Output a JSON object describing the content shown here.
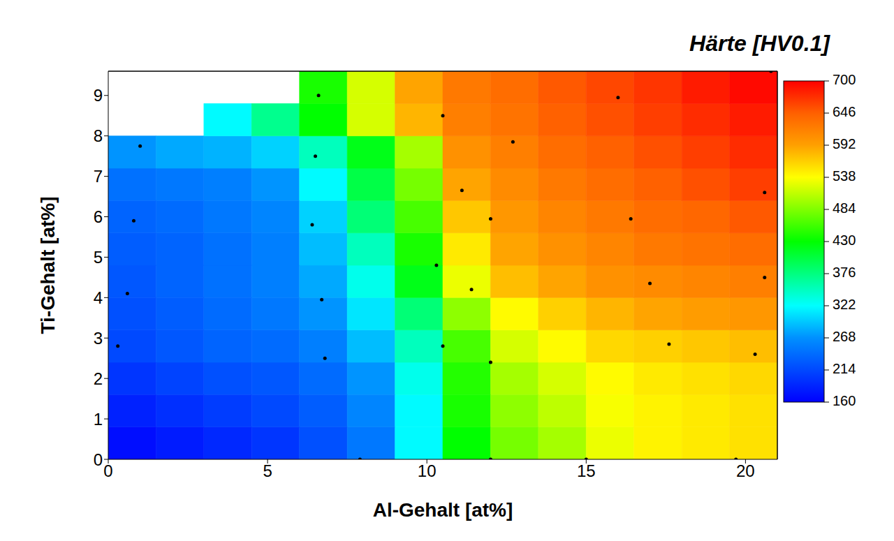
{
  "chart_data": {
    "type": "heatmap",
    "colorbar_title": "Härte [HV0.1]",
    "x_label": "Al-Gehalt [at%]",
    "y_label": "Ti-Gehalt [at%]",
    "xlim": [
      0,
      21
    ],
    "ylim": [
      0,
      9.6
    ],
    "xticks": [
      0,
      5,
      10,
      15,
      20
    ],
    "yticks": [
      0,
      1,
      2,
      3,
      4,
      5,
      6,
      7,
      8,
      9
    ],
    "cells": {
      "x": [
        0.75,
        2.25,
        3.75,
        5.25,
        6.75,
        8.25,
        9.75,
        11.25,
        12.75,
        14.25,
        15.75,
        17.25,
        18.75,
        20.25
      ],
      "y": [
        0.4,
        1.2,
        2.0,
        2.8,
        3.6,
        4.4,
        5.2,
        6.0,
        6.8,
        7.6,
        8.4,
        9.2
      ],
      "values": [
        [
          170,
          180,
          190,
          200,
          220,
          250,
          320,
          430,
          480,
          500,
          530,
          545,
          550,
          555
        ],
        [
          185,
          195,
          205,
          215,
          230,
          260,
          320,
          440,
          490,
          510,
          535,
          545,
          550,
          555
        ],
        [
          200,
          210,
          220,
          225,
          240,
          270,
          330,
          445,
          500,
          520,
          540,
          550,
          555,
          560
        ],
        [
          215,
          225,
          235,
          240,
          255,
          290,
          350,
          460,
          520,
          540,
          560,
          565,
          570,
          575
        ],
        [
          220,
          230,
          240,
          250,
          270,
          310,
          380,
          490,
          540,
          565,
          580,
          590,
          595,
          600
        ],
        [
          225,
          235,
          245,
          255,
          280,
          330,
          420,
          530,
          575,
          590,
          605,
          610,
          615,
          620
        ],
        [
          230,
          235,
          245,
          255,
          290,
          350,
          440,
          550,
          590,
          605,
          615,
          625,
          630,
          635
        ],
        [
          235,
          240,
          250,
          260,
          300,
          380,
          460,
          570,
          600,
          615,
          625,
          635,
          640,
          650
        ],
        [
          245,
          250,
          255,
          270,
          320,
          400,
          480,
          590,
          610,
          625,
          635,
          645,
          655,
          665
        ],
        [
          270,
          280,
          285,
          300,
          350,
          420,
          500,
          605,
          620,
          635,
          645,
          655,
          665,
          675
        ],
        [
          null,
          null,
          320,
          370,
          430,
          520,
          580,
          620,
          630,
          645,
          655,
          665,
          675,
          685
        ],
        [
          null,
          null,
          null,
          null,
          440,
          520,
          590,
          625,
          635,
          650,
          660,
          670,
          685,
          695
        ]
      ]
    },
    "points": {
      "x": [
        0.3,
        0.6,
        0.8,
        1.0,
        6.5,
        6.6,
        6.4,
        6.7,
        6.8,
        7.9,
        10.5,
        11.1,
        12.7,
        12.0,
        10.3,
        11.4,
        10.5,
        12.0,
        12.0,
        15.0,
        16.0,
        16.4,
        17.0,
        17.6,
        19.7,
        20.3,
        20.6,
        20.6,
        20.8
      ],
      "y": [
        2.8,
        4.1,
        5.9,
        7.75,
        7.5,
        9.0,
        5.8,
        3.95,
        2.5,
        0,
        8.5,
        6.65,
        7.85,
        5.95,
        4.8,
        4.2,
        2.8,
        2.4,
        0,
        0,
        8.95,
        5.95,
        4.35,
        2.85,
        0,
        2.6,
        4.5,
        6.6,
        9.6
      ],
      "color": "#000000"
    },
    "colorbar": {
      "range": [
        160,
        700
      ],
      "ticks": [
        160,
        214,
        268,
        322,
        376,
        430,
        484,
        538,
        592,
        646,
        700
      ]
    }
  }
}
